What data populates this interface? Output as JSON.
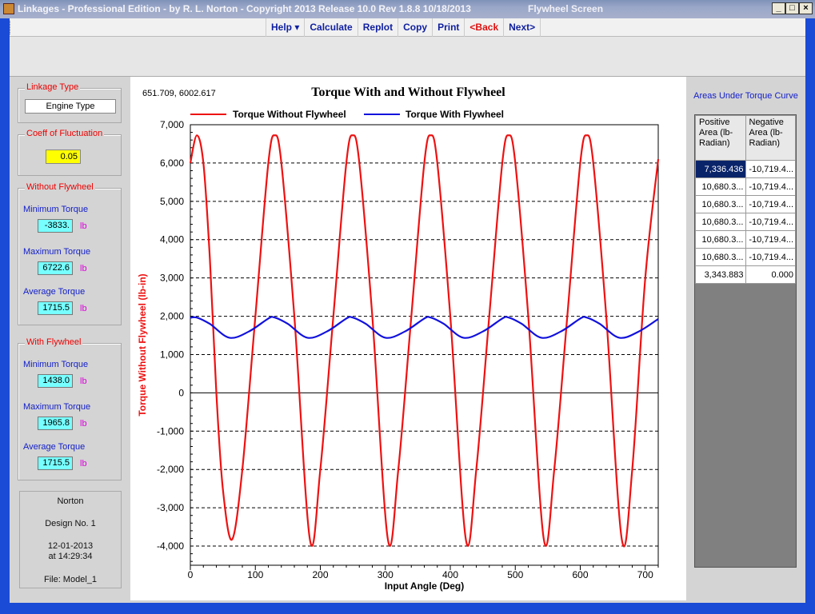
{
  "window": {
    "title": "Linkages - Professional Edition - by R. L. Norton - Copyright 2013   Release 10.0   Rev 1.8.8   10/18/2013",
    "screen_name": "Flywheel Screen",
    "controls": {
      "minimize": "_",
      "maximize": "□",
      "close": "×"
    }
  },
  "menu": {
    "help": "Help ▾",
    "calculate": "Calculate",
    "replot": "Replot",
    "copy": "Copy",
    "print": "Print",
    "back": "<Back",
    "next": "Next>"
  },
  "linkage_type": {
    "caption": "Linkage Type",
    "value": "Engine Type"
  },
  "coeff_fluctuation": {
    "caption": "Coeff of Fluctuation",
    "value": "0.05"
  },
  "without_flywheel": {
    "caption": "Without Flywheel",
    "min_label": "Minimum Torque",
    "min_value": "-3833.",
    "min_unit": "lb",
    "max_label": "Maximum Torque",
    "max_value": "6722.6",
    "max_unit": "lb",
    "avg_label": "Average Torque",
    "avg_value": "1715.5",
    "avg_unit": "lb"
  },
  "with_flywheel": {
    "caption": "With Flywheel",
    "min_label": "Minimum Torque",
    "min_value": "1438.0",
    "min_unit": "lb",
    "max_label": "Maximum Torque",
    "max_value": "1965.8",
    "max_unit": "lb",
    "avg_label": "Average Torque",
    "avg_value": "1715.5",
    "avg_unit": "lb"
  },
  "info": {
    "author": "Norton",
    "design": "Design No. 1",
    "date": "12-01-2013",
    "time": "at 14:29:34",
    "file": "File: Model_1"
  },
  "cursor_readout": "651.709, 6002.617",
  "chart_data": {
    "type": "line",
    "title": "Torque With and Without Flywheel",
    "xlabel": "Input Angle (Deg)",
    "ylabel": "Torque Without Flywheel  (lb-in)",
    "xlim": [
      0,
      720
    ],
    "ylim": [
      -4500,
      7000
    ],
    "xticks": [
      0,
      100,
      200,
      300,
      400,
      500,
      600,
      700
    ],
    "yticks": [
      -4000,
      -3000,
      -2000,
      -1000,
      0,
      1000,
      2000,
      3000,
      4000,
      5000,
      6000,
      7000
    ],
    "ytick_labels": [
      "-4,000",
      "-3,000",
      "-2,000",
      "-1,000",
      "0",
      "1,000",
      "2,000",
      "3,000",
      "4,000",
      "5,000",
      "6,000",
      "7,000"
    ],
    "grid": "horizontal dashed",
    "legend_position": "top",
    "series": [
      {
        "name": "Torque Without Flywheel",
        "color": "#ee1111",
        "x": [
          0,
          10,
          20,
          30,
          40,
          50,
          64,
          80,
          100,
          120,
          130,
          140,
          160,
          184,
          200,
          220,
          240,
          250,
          260,
          280,
          304,
          320,
          340,
          360,
          370,
          380,
          400,
          424,
          440,
          460,
          480,
          490,
          500,
          520,
          544,
          560,
          580,
          600,
          610,
          620,
          640,
          664,
          680,
          700,
          720
        ],
        "y": [
          6000,
          6722,
          6000,
          3500,
          0,
          -2500,
          -3833,
          -2000,
          2000,
          6000,
          6722,
          6000,
          2000,
          -3833,
          -2000,
          2000,
          6000,
          6722,
          6000,
          2000,
          -3833,
          -2000,
          2000,
          6000,
          6722,
          6000,
          2000,
          -3833,
          -2000,
          2000,
          6000,
          6722,
          6000,
          2000,
          -3833,
          -2000,
          2000,
          6000,
          6722,
          6000,
          2000,
          -3833,
          -2000,
          3000,
          6100
        ]
      },
      {
        "name": "Torque With Flywheel",
        "color": "#1111dd",
        "x": [
          0,
          10,
          30,
          60,
          90,
          120,
          130,
          150,
          180,
          210,
          240,
          250,
          270,
          300,
          330,
          360,
          370,
          390,
          420,
          450,
          480,
          490,
          510,
          540,
          570,
          600,
          610,
          630,
          660,
          690,
          720
        ],
        "y": [
          1960,
          1965,
          1800,
          1440,
          1600,
          1940,
          1965,
          1800,
          1440,
          1600,
          1940,
          1965,
          1800,
          1440,
          1600,
          1940,
          1965,
          1800,
          1440,
          1600,
          1940,
          1965,
          1800,
          1440,
          1600,
          1940,
          1965,
          1800,
          1440,
          1600,
          1930
        ]
      }
    ]
  },
  "areas": {
    "title": "Areas Under Torque Curve",
    "headers": [
      "Positive Area (lb-Radian)",
      "Negative Area (lb-Radian)"
    ],
    "rows": [
      [
        "7,336.436",
        "-10,719.4..."
      ],
      [
        "10,680.3...",
        "-10,719.4..."
      ],
      [
        "10,680.3...",
        "-10,719.4..."
      ],
      [
        "10,680.3...",
        "-10,719.4..."
      ],
      [
        "10,680.3...",
        "-10,719.4..."
      ],
      [
        "10,680.3...",
        "-10,719.4..."
      ],
      [
        "3,343.883",
        "0.000"
      ]
    ]
  }
}
